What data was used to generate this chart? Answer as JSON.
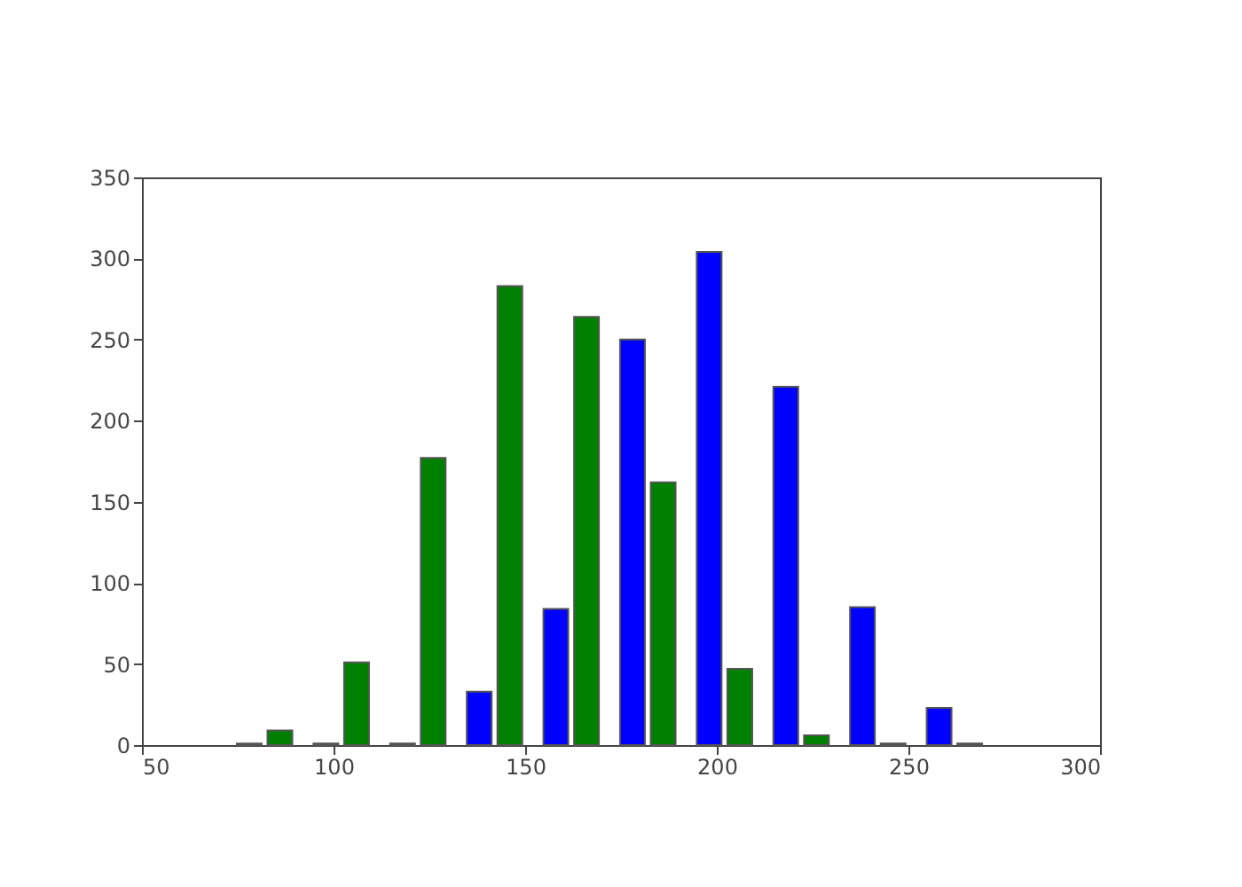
{
  "chart_data": {
    "type": "bar",
    "xlim": [
      50,
      300
    ],
    "xticks": [
      50,
      100,
      150,
      200,
      250,
      300
    ],
    "ylim": [
      0,
      350
    ],
    "yticks": [
      0,
      50,
      100,
      150,
      200,
      250,
      300,
      350
    ],
    "grid": false,
    "series": [
      {
        "color": "#0000ff",
        "x": [
          78,
          98,
          118,
          138,
          158,
          178,
          198,
          218,
          238,
          258
        ],
        "values": [
          1,
          1,
          1,
          33,
          84,
          250,
          304,
          221,
          85,
          23
        ]
      },
      {
        "color": "#008000",
        "x": [
          86,
          106,
          126,
          146,
          166,
          186,
          206,
          226,
          246,
          266
        ],
        "values": [
          9,
          51,
          177,
          283,
          264,
          162,
          47,
          6,
          1,
          1
        ]
      }
    ]
  }
}
